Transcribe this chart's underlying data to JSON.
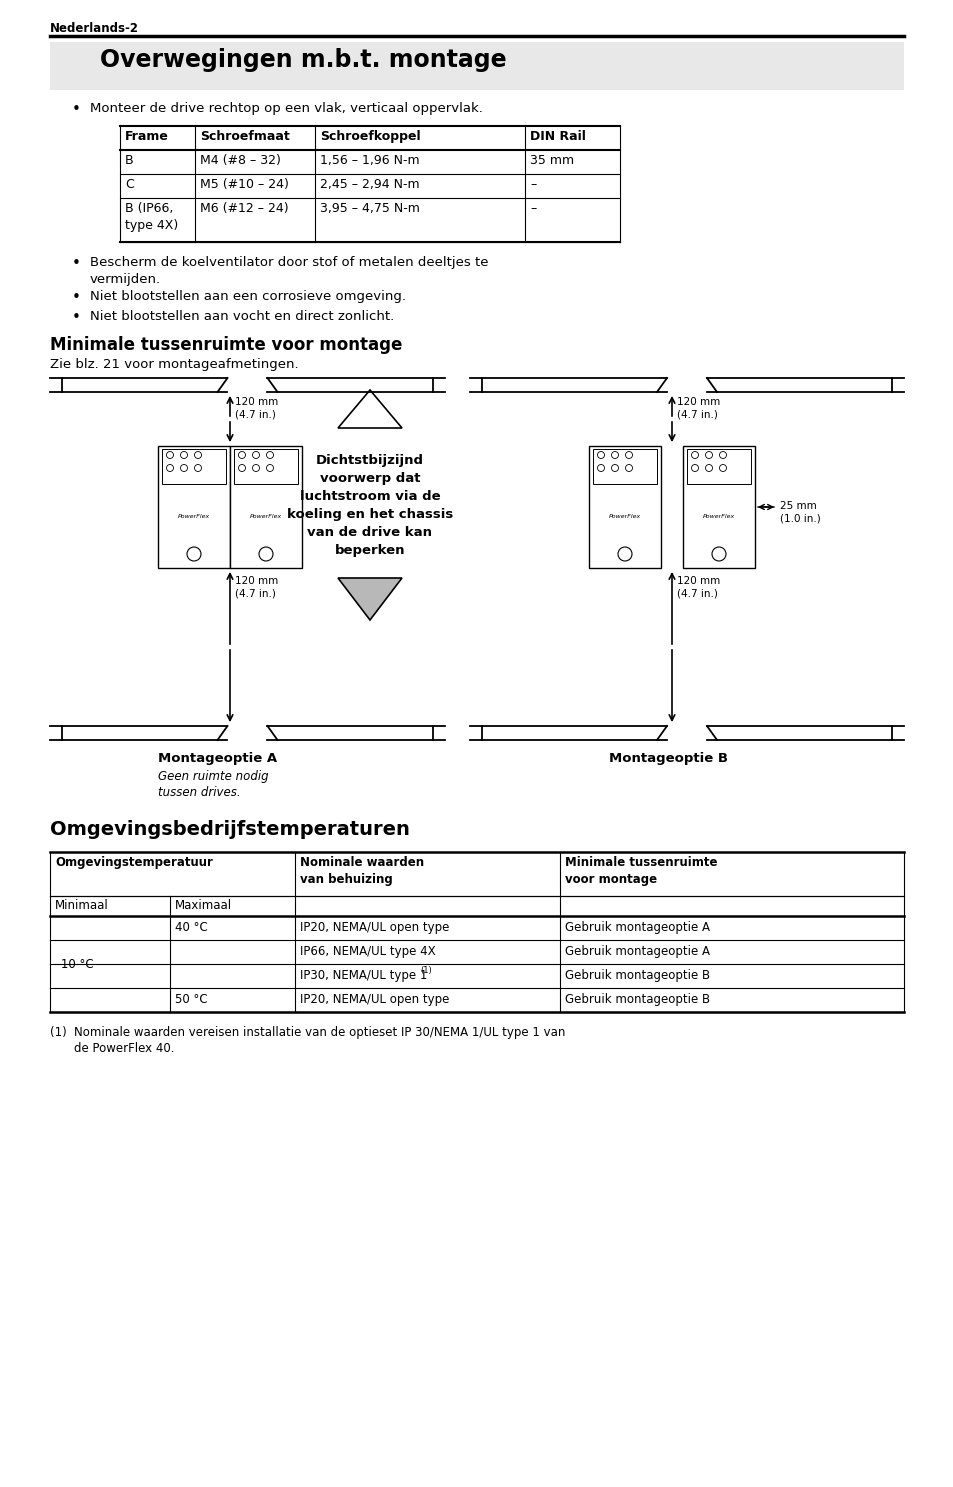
{
  "page_label": "Nederlands-2",
  "title1": "Overwegingen m.b.t. montage",
  "bullet1": "Monteer de drive rechtop op een vlak, verticaal oppervlak.",
  "table1_headers": [
    "Frame",
    "Schroefmaat",
    "Schroefkoppel",
    "DIN Rail"
  ],
  "table1_rows": [
    [
      "B",
      "M4 (#8 – 32)",
      "1,56 – 1,96 N-m",
      "35 mm"
    ],
    [
      "C",
      "M5 (#10 – 24)",
      "2,45 – 2,94 N-m",
      "–"
    ],
    [
      "B (IP66,\ntype 4X)",
      "M6 (#12 – 24)",
      "3,95 – 4,75 N-m",
      "–"
    ]
  ],
  "bullet2": "Bescherm de koelventilator door stof of metalen deeltjes te\nvermijden.",
  "bullet3": "Niet blootstellen aan een corrosieve omgeving.",
  "bullet4": "Niet blootstellen aan vocht en direct zonlicht.",
  "title2": "Minimale tussenruimte voor montage",
  "subtitle2": "Zie blz. 21 voor montageafmetingen.",
  "diagram_label_top_left": "120 mm\n(4.7 in.)",
  "diagram_label_top_right": "120 mm\n(4.7 in.)",
  "diagram_label_right_side": "25 mm\n(1.0 in.)",
  "diagram_label_bottom_left": "120 mm\n(4.7 in.)",
  "diagram_label_bottom_right": "120 mm\n(4.7 in.)",
  "diagram_center_text": "Dichtstbijzijnd\nvoorwerp dat\nluchtstroom via de\nkoeling en het chassis\nvan de drive kan\nbeperken",
  "montage_a_label": "Montageoptie A",
  "montage_a_sublabel": "Geen ruimte nodig\ntussen drives.",
  "montage_b_label": "Montageoptie B",
  "title3": "Omgevingsbedrijfstemperaturen",
  "table2_col1_header": "Omgevingstemperatuur",
  "table2_col2_header": "Nominale waarden\nvan behuizing",
  "table2_col3_header": "Minimale tussenruimte\nvoor montage",
  "footnote1": "(1)",
  "footnote2": "Nominale waarden vereisen installatie van de optieset IP 30/NEMA 1/UL type 1 van\nde PowerFlex 40.",
  "bg_title_color": "#e8e8e8",
  "white": "#ffffff"
}
